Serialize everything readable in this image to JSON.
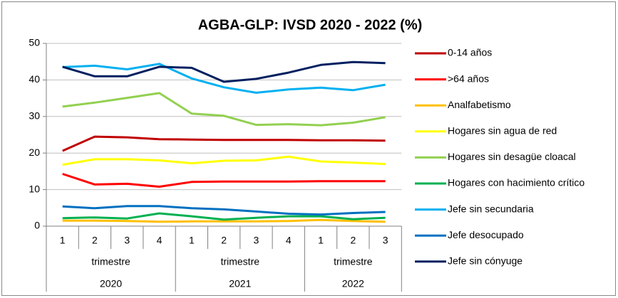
{
  "chart_data": {
    "type": "line",
    "title": "AGBA-GLP: IVSD 2020 - 2022 (%)",
    "category_groups": [
      {
        "label": "2020",
        "sublabel": "trimestre",
        "categories": [
          "1",
          "2",
          "3",
          "4"
        ]
      },
      {
        "label": "2021",
        "sublabel": "trimestre",
        "categories": [
          "1",
          "2",
          "3",
          "4"
        ]
      },
      {
        "label": "2022",
        "sublabel": "trimestre",
        "categories": [
          "1",
          "2",
          "3"
        ]
      }
    ],
    "ylim": [
      0,
      50
    ],
    "yticks": [
      0,
      10,
      20,
      30,
      40,
      50
    ],
    "grid": true,
    "legend": "right",
    "series": [
      {
        "name": "0-14 años",
        "color": "#c00000",
        "values": [
          20.6,
          24.5,
          24.3,
          23.8,
          23.7,
          23.6,
          23.6,
          23.6,
          23.5,
          23.5,
          23.4
        ]
      },
      {
        "name": ">64 años",
        "color": "#ff0000",
        "values": [
          14.3,
          11.4,
          11.6,
          10.8,
          12.1,
          12.2,
          12.2,
          12.2,
          12.3,
          12.3,
          12.3
        ]
      },
      {
        "name": "Analfabetismo",
        "color": "#ffc000",
        "values": [
          1.5,
          1.5,
          1.4,
          1.2,
          1.3,
          1.3,
          1.3,
          1.4,
          1.7,
          1.4,
          1.2
        ]
      },
      {
        "name": "Hogares sin agua de red",
        "color": "#ffff00",
        "values": [
          16.8,
          18.3,
          18.3,
          18.0,
          17.2,
          17.9,
          18.0,
          19.0,
          17.7,
          17.4,
          17.0
        ]
      },
      {
        "name": "Hogares sin desagüe cloacal",
        "color": "#92d050",
        "values": [
          32.7,
          33.8,
          35.1,
          36.4,
          30.8,
          30.2,
          27.7,
          27.9,
          27.6,
          28.3,
          29.8
        ]
      },
      {
        "name": "Hogares con hacimiento crítico",
        "color": "#00b050",
        "values": [
          2.2,
          2.4,
          2.1,
          3.5,
          2.7,
          1.8,
          2.3,
          2.7,
          2.7,
          1.9,
          2.3
        ]
      },
      {
        "name": "Jefe sin secundaria",
        "color": "#00b0f0",
        "values": [
          43.5,
          43.9,
          42.9,
          44.4,
          40.4,
          38.0,
          36.5,
          37.4,
          37.9,
          37.2,
          38.7
        ]
      },
      {
        "name": "Jefe desocupado",
        "color": "#0070c0",
        "values": [
          5.4,
          4.9,
          5.5,
          5.5,
          4.9,
          4.6,
          4.0,
          3.4,
          3.2,
          3.6,
          3.9
        ]
      },
      {
        "name": "Jefe sin cónyuge",
        "color": "#002060",
        "values": [
          43.6,
          41.0,
          41.0,
          43.6,
          43.3,
          39.5,
          40.3,
          42.0,
          44.1,
          44.9,
          44.6
        ]
      }
    ]
  }
}
